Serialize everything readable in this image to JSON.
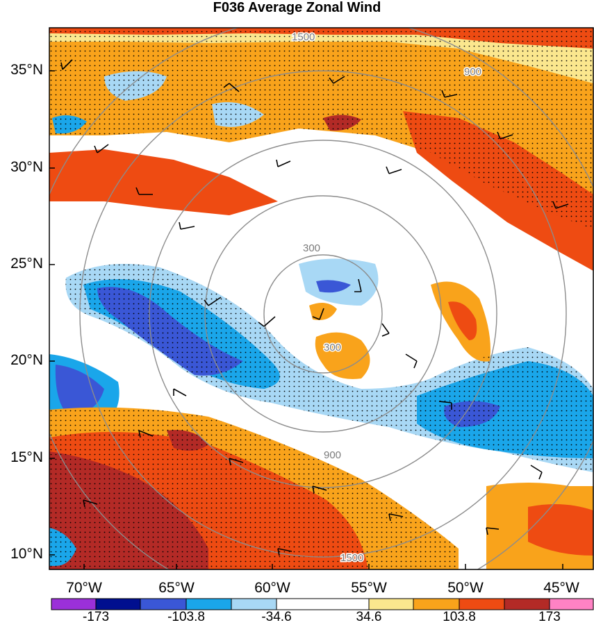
{
  "title": "F036 Average Zonal Wind",
  "map": {
    "lat_labels": [
      "35°N",
      "30°N",
      "25°N",
      "20°N",
      "15°N",
      "10°N"
    ],
    "lon_labels": [
      "70°W",
      "65°W",
      "60°W",
      "55°W",
      "50°W",
      "45°W"
    ],
    "range_ring_labels": [
      "300",
      "900",
      "1500"
    ]
  },
  "colorbar": {
    "labels": [
      "-173",
      "-103.8",
      "-34.6",
      "34.6",
      "103.8",
      "173"
    ],
    "colors": [
      "#9b30d9",
      "#000f8f",
      "#3a57d6",
      "#1aa6ea",
      "#a8d8f5",
      "#ffffff",
      "#fbe78e",
      "#f9a31b",
      "#ee4b12",
      "#b32a26",
      "#ff82c4"
    ]
  },
  "palette": {
    "strong_neg": "#3a57d6",
    "neg": "#1aa6ea",
    "weak_neg": "#a8d8f5",
    "weak_pos": "#fbe78e",
    "pos": "#f9a31b",
    "strong_pos": "#ee4b12",
    "very_strong_pos": "#b32a26"
  }
}
